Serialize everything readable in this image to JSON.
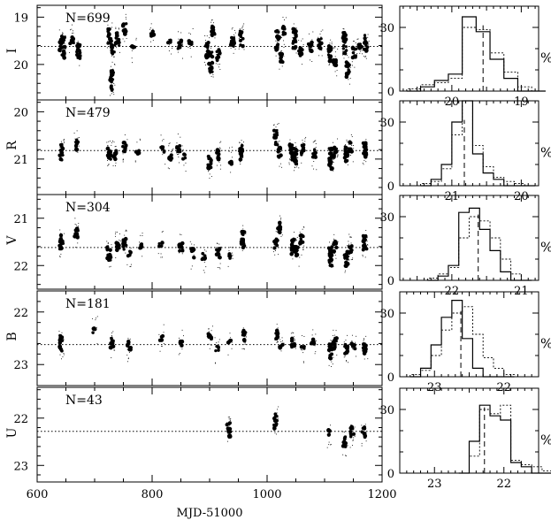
{
  "chart_data": {
    "type": "scatter",
    "x_axis": {
      "label": "MJD-51000",
      "range": [
        600,
        1200
      ],
      "major_ticks": [
        600,
        800,
        1000,
        1200
      ],
      "minor_step": 50
    },
    "panels": [
      {
        "band": "I",
        "n_label": "N=699",
        "y_range": [
          20.75,
          18.75
        ],
        "y_ticks": [
          19,
          20
        ],
        "mean": 19.62,
        "observations": [
          [
            642,
            19.55,
            3
          ],
          [
            645,
            19.65,
            4
          ],
          [
            660,
            19.45,
            2
          ],
          [
            672,
            19.72,
            3
          ],
          [
            726,
            19.42,
            3
          ],
          [
            730,
            20.35,
            4
          ],
          [
            732,
            19.7,
            2
          ],
          [
            740,
            19.45,
            3
          ],
          [
            752,
            19.25,
            2
          ],
          [
            768,
            19.65,
            1
          ],
          [
            800,
            19.35,
            1
          ],
          [
            830,
            19.5,
            1
          ],
          [
            848,
            19.6,
            2
          ],
          [
            866,
            19.55,
            1
          ],
          [
            895,
            19.7,
            3
          ],
          [
            902,
            19.95,
            4
          ],
          [
            906,
            19.3,
            2
          ],
          [
            915,
            19.8,
            2
          ],
          [
            940,
            19.52,
            2
          ],
          [
            955,
            19.45,
            3
          ],
          [
            1018,
            19.5,
            4
          ],
          [
            1024,
            19.85,
            2
          ],
          [
            1028,
            19.3,
            2
          ],
          [
            1048,
            19.45,
            4
          ],
          [
            1058,
            19.75,
            2
          ],
          [
            1075,
            19.62,
            2
          ],
          [
            1092,
            19.55,
            2
          ],
          [
            1110,
            19.78,
            3
          ],
          [
            1118,
            19.95,
            2
          ],
          [
            1135,
            19.55,
            4
          ],
          [
            1140,
            20.1,
            3
          ],
          [
            1152,
            19.75,
            2
          ],
          [
            1162,
            19.62,
            1
          ],
          [
            1172,
            19.55,
            3
          ]
        ],
        "hist_x_range": [
          20.75,
          18.75
        ],
        "hist_x_ticks": [
          20,
          19
        ],
        "hist_y_range": [
          0,
          40
        ],
        "hist_y_ticks": [
          0,
          30
        ],
        "hist_median": 19.55,
        "hist_edges_min": 20.65,
        "hist_bin": 0.2,
        "hist_solid": [
          0,
          2,
          5,
          8,
          35,
          28,
          15,
          6,
          0,
          0
        ],
        "hist_dashed": [
          1,
          3,
          4,
          6,
          30,
          29,
          18,
          9,
          2,
          0
        ]
      },
      {
        "band": "R",
        "n_label": "N=479",
        "y_range": [
          21.75,
          19.75
        ],
        "y_ticks": [
          20,
          21
        ],
        "mean": 20.82,
        "observations": [
          [
            642,
            20.85,
            3
          ],
          [
            668,
            20.7,
            2
          ],
          [
            725,
            20.85,
            3
          ],
          [
            735,
            20.9,
            2
          ],
          [
            752,
            20.75,
            2
          ],
          [
            775,
            20.85,
            1
          ],
          [
            818,
            20.8,
            1
          ],
          [
            832,
            20.95,
            2
          ],
          [
            846,
            20.75,
            2
          ],
          [
            856,
            20.95,
            1
          ],
          [
            900,
            21.1,
            3
          ],
          [
            915,
            20.9,
            2
          ],
          [
            935,
            21.05,
            1
          ],
          [
            955,
            20.85,
            3
          ],
          [
            1015,
            20.55,
            3
          ],
          [
            1022,
            20.85,
            2
          ],
          [
            1042,
            20.85,
            3
          ],
          [
            1050,
            20.95,
            3
          ],
          [
            1062,
            20.8,
            2
          ],
          [
            1082,
            20.9,
            2
          ],
          [
            1110,
            21.0,
            4
          ],
          [
            1118,
            20.85,
            2
          ],
          [
            1138,
            20.9,
            3
          ],
          [
            1145,
            20.75,
            2
          ],
          [
            1170,
            20.8,
            3
          ]
        ],
        "hist_x_range": [
          21.75,
          19.75
        ],
        "hist_x_ticks": [
          21,
          20
        ],
        "hist_y_range": [
          0,
          40
        ],
        "hist_y_ticks": [
          0,
          30
        ],
        "hist_median": 20.82,
        "hist_edges_min": 21.45,
        "hist_bin": 0.15,
        "hist_solid": [
          0,
          3,
          10,
          30,
          40,
          15,
          6,
          3,
          0,
          0,
          0
        ],
        "hist_dashed": [
          1,
          2,
          8,
          24,
          40,
          19,
          9,
          4,
          2,
          1,
          0
        ]
      },
      {
        "band": "V",
        "n_label": "N=304",
        "y_range": [
          22.5,
          20.5
        ],
        "y_ticks": [
          21,
          22
        ],
        "mean": 21.62,
        "observations": [
          [
            642,
            21.5,
            3
          ],
          [
            668,
            21.3,
            2
          ],
          [
            725,
            21.75,
            3
          ],
          [
            740,
            21.6,
            2
          ],
          [
            752,
            21.55,
            2
          ],
          [
            760,
            21.75,
            1
          ],
          [
            780,
            21.6,
            1
          ],
          [
            815,
            21.55,
            1
          ],
          [
            850,
            21.6,
            2
          ],
          [
            870,
            21.75,
            2
          ],
          [
            890,
            21.85,
            2
          ],
          [
            915,
            21.75,
            2
          ],
          [
            936,
            21.8,
            1
          ],
          [
            958,
            21.45,
            3
          ],
          [
            1015,
            21.55,
            2
          ],
          [
            1022,
            21.2,
            2
          ],
          [
            1045,
            21.6,
            3
          ],
          [
            1052,
            21.7,
            2
          ],
          [
            1060,
            21.45,
            2
          ],
          [
            1110,
            21.8,
            4
          ],
          [
            1118,
            21.6,
            2
          ],
          [
            1138,
            21.85,
            3
          ],
          [
            1145,
            21.65,
            2
          ],
          [
            1170,
            21.5,
            3
          ]
        ],
        "hist_x_range": [
          22.75,
          20.75
        ],
        "hist_x_ticks": [
          22,
          21
        ],
        "hist_y_range": [
          0,
          40
        ],
        "hist_y_ticks": [
          0,
          30
        ],
        "hist_median": 21.62,
        "hist_edges_min": 22.35,
        "hist_bin": 0.15,
        "hist_solid": [
          0,
          2,
          7,
          32,
          34,
          24,
          14,
          4,
          0,
          0
        ],
        "hist_dashed": [
          1,
          3,
          6,
          20,
          30,
          28,
          20,
          10,
          3,
          0
        ]
      },
      {
        "band": "B",
        "n_label": "N=181",
        "y_range": [
          23.4,
          21.6
        ],
        "y_ticks": [
          22,
          23
        ],
        "mean": 22.62,
        "observations": [
          [
            642,
            22.6,
            3
          ],
          [
            700,
            22.35,
            1
          ],
          [
            730,
            22.6,
            2
          ],
          [
            760,
            22.65,
            2
          ],
          [
            816,
            22.5,
            1
          ],
          [
            850,
            22.6,
            1
          ],
          [
            900,
            22.5,
            2
          ],
          [
            913,
            22.7,
            1
          ],
          [
            935,
            22.55,
            1
          ],
          [
            960,
            22.45,
            2
          ],
          [
            1017,
            22.45,
            2
          ],
          [
            1024,
            22.65,
            1
          ],
          [
            1045,
            22.6,
            2
          ],
          [
            1062,
            22.7,
            1
          ],
          [
            1080,
            22.55,
            1
          ],
          [
            1110,
            22.75,
            3
          ],
          [
            1118,
            22.6,
            2
          ],
          [
            1138,
            22.7,
            2
          ],
          [
            1150,
            22.65,
            1
          ],
          [
            1170,
            22.7,
            2
          ]
        ],
        "hist_x_range": [
          23.5,
          21.5
        ],
        "hist_x_ticks": [
          23,
          22
        ],
        "hist_y_range": [
          0,
          40
        ],
        "hist_y_ticks": [
          0,
          30
        ],
        "hist_median": 22.62,
        "hist_edges_min": 23.35,
        "hist_bin": 0.15,
        "hist_solid": [
          0,
          4,
          15,
          28,
          36,
          18,
          4,
          0,
          0,
          0
        ],
        "hist_dashed": [
          1,
          3,
          10,
          22,
          30,
          33,
          20,
          9,
          4,
          1
        ]
      },
      {
        "band": "U",
        "n_label": "N=43",
        "y_range": [
          23.35,
          21.35
        ],
        "y_ticks": [
          22,
          23
        ],
        "mean": 22.28,
        "observations": [
          [
            933,
            22.25,
            3
          ],
          [
            1015,
            22.05,
            3
          ],
          [
            1108,
            22.3,
            1
          ],
          [
            1135,
            22.5,
            2
          ],
          [
            1148,
            22.3,
            2
          ],
          [
            1168,
            22.3,
            2
          ]
        ],
        "hist_x_range": [
          23.5,
          21.5
        ],
        "hist_x_ticks": [
          23,
          22
        ],
        "hist_y_range": [
          0,
          40
        ],
        "hist_y_ticks": [
          0,
          30
        ],
        "hist_median": 22.28,
        "hist_edges_min": 22.65,
        "hist_bin": 0.15,
        "hist_solid": [
          0,
          15,
          32,
          27,
          25,
          5,
          3,
          0,
          0
        ],
        "hist_dashed": [
          0,
          8,
          30,
          28,
          32,
          6,
          4,
          3,
          1
        ]
      }
    ],
    "hist_y_label": "%"
  }
}
